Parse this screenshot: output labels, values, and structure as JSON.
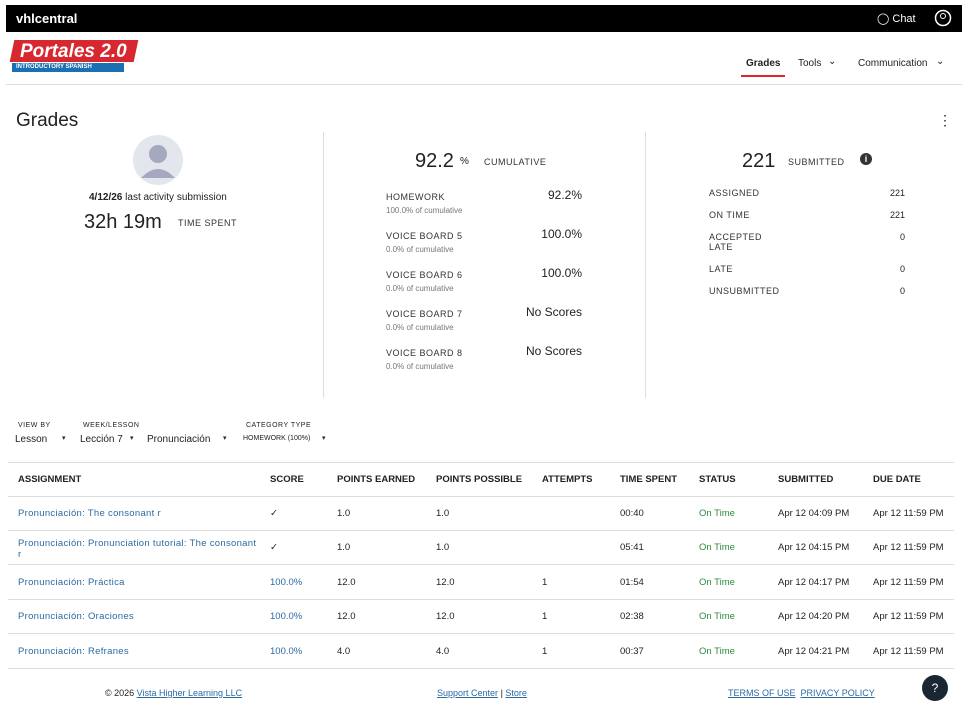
{
  "header": {
    "brand": "vhlcentral",
    "chat": "Chat"
  },
  "logo": {
    "title": "Portales 2.0",
    "subtitle": "INTRODUCTORY SPANISH"
  },
  "nav": [
    "Grades",
    "Tools",
    "Communication"
  ],
  "page_title": "Grades",
  "activity": {
    "date": "4/12/26",
    "date_label": "last activity submission",
    "time_spent": "32h 19m",
    "time_label": "TIME SPENT"
  },
  "cumulative": {
    "value": "92.2",
    "unit": "%",
    "label": "CUMULATIVE",
    "categories": [
      {
        "name": "HOMEWORK",
        "share": "100.0% of cumulative",
        "score": "92.2%"
      },
      {
        "name": "VOICE BOARD 5",
        "share": "0.0% of cumulative",
        "score": "100.0%"
      },
      {
        "name": "VOICE BOARD 6",
        "share": "0.0% of cumulative",
        "score": "100.0%"
      },
      {
        "name": "VOICE BOARD 7",
        "share": "0.0% of cumulative",
        "score": "No Scores"
      },
      {
        "name": "VOICE BOARD 8",
        "share": "0.0% of cumulative",
        "score": "No Scores"
      }
    ]
  },
  "submitted": {
    "value": "221",
    "label": "SUBMITTED",
    "rows": [
      {
        "label": "ASSIGNED",
        "value": "221"
      },
      {
        "label": "ON TIME",
        "value": "221"
      },
      {
        "label": "ACCEPTED LATE",
        "value": "0"
      },
      {
        "label": "LATE",
        "value": "0"
      },
      {
        "label": "UNSUBMITTED",
        "value": "0"
      }
    ]
  },
  "filters": [
    {
      "label": "VIEW BY",
      "value": "Lesson"
    },
    {
      "label": "WEEK/LESSON",
      "value": "Lección 7"
    },
    {
      "value": "Pronunciación"
    },
    {
      "label": "CATEGORY TYPE",
      "value": "HOMEWORK (100%)"
    }
  ],
  "table": {
    "columns": [
      "ASSIGNMENT",
      "SCORE",
      "POINTS EARNED",
      "POINTS POSSIBLE",
      "ATTEMPTS",
      "TIME SPENT",
      "STATUS",
      "SUBMITTED",
      "DUE DATE"
    ],
    "rows": [
      [
        "Pronunciación: The consonant r",
        "✓",
        "1.0",
        "1.0",
        null,
        "00:40",
        "On Time",
        "Apr 12 04:09 PM",
        "Apr 12 11:59 PM"
      ],
      [
        "Pronunciación: Pronunciation tutorial: The consonant r",
        "✓",
        "1.0",
        "1.0",
        null,
        "05:41",
        "On Time",
        "Apr 12 04:15 PM",
        "Apr 12 11:59 PM"
      ],
      [
        "Pronunciación: Práctica",
        "100.0%",
        "12.0",
        "12.0",
        "1",
        "01:54",
        "On Time",
        "Apr 12 04:17 PM",
        "Apr 12 11:59 PM"
      ],
      [
        "Pronunciación: Oraciones",
        "100.0%",
        "12.0",
        "12.0",
        "1",
        "02:38",
        "On Time",
        "Apr 12 04:20 PM",
        "Apr 12 11:59 PM"
      ],
      [
        "Pronunciación: Refranes",
        "100.0%",
        "4.0",
        "4.0",
        "1",
        "00:37",
        "On Time",
        "Apr 12 04:21 PM",
        "Apr 12 11:59 PM"
      ]
    ]
  },
  "footer": {
    "copyright": "© 2026",
    "company": "Vista Higher Learning LLC",
    "support": "Support Center",
    "separator": "|",
    "store": "Store",
    "terms": "TERMS OF USE",
    "privacy": "PRIVACY POLICY"
  }
}
